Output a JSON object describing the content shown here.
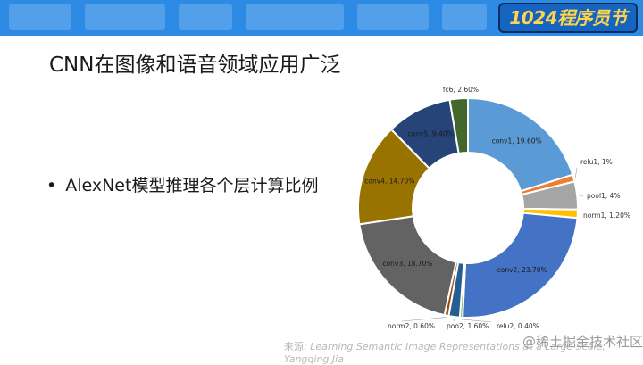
{
  "banner": {
    "brand": "1024程序员节"
  },
  "slide": {
    "title": "CNN在图像和语音领域应用广泛",
    "bullet": "AlexNet模型推理各个层计算比例",
    "bullet_marker": "•",
    "source_label": "来源:",
    "source_text": "Learning Semantic Image Representations at a Large Scale, Yangqing Jia",
    "watermark": "@稀土掘金技术社区"
  },
  "colors": {
    "banner": "#2d8be6",
    "brand_text": "#ffd34d"
  },
  "chart_data": {
    "type": "pie",
    "style": "donut",
    "title": "",
    "slices": [
      {
        "name": "conv1",
        "value": 19.6,
        "label": "conv1, 19.60%",
        "color": "#5b9bd5"
      },
      {
        "name": "relu1",
        "value": 1.0,
        "label": "relu1, 1%",
        "color": "#ed7d31"
      },
      {
        "name": "pool1",
        "value": 4.0,
        "label": "pool1, 4%",
        "color": "#a5a5a5"
      },
      {
        "name": "norm1",
        "value": 1.2,
        "label": "norm1, 1.20%",
        "color": "#ffc000"
      },
      {
        "name": "conv2",
        "value": 23.7,
        "label": "conv2, 23.70%",
        "color": "#4472c4"
      },
      {
        "name": "relu2",
        "value": 0.4,
        "label": "relu2, 0.40%",
        "color": "#70ad47"
      },
      {
        "name": "poo2",
        "value": 1.6,
        "label": "poo2, 1.60%",
        "color": "#255e91"
      },
      {
        "name": "norm2",
        "value": 0.6,
        "label": "norm2, 0.60%",
        "color": "#9e480e"
      },
      {
        "name": "conv3",
        "value": 18.7,
        "label": "conv3, 18.70%",
        "color": "#636363"
      },
      {
        "name": "conv4",
        "value": 14.7,
        "label": "conv4, 14.70%",
        "color": "#997300"
      },
      {
        "name": "conv5",
        "value": 9.4,
        "label": "conv5, 9.40%",
        "color": "#264478"
      },
      {
        "name": "fc6",
        "value": 2.6,
        "label": "fc6, 2.60%",
        "color": "#43682b"
      }
    ]
  }
}
